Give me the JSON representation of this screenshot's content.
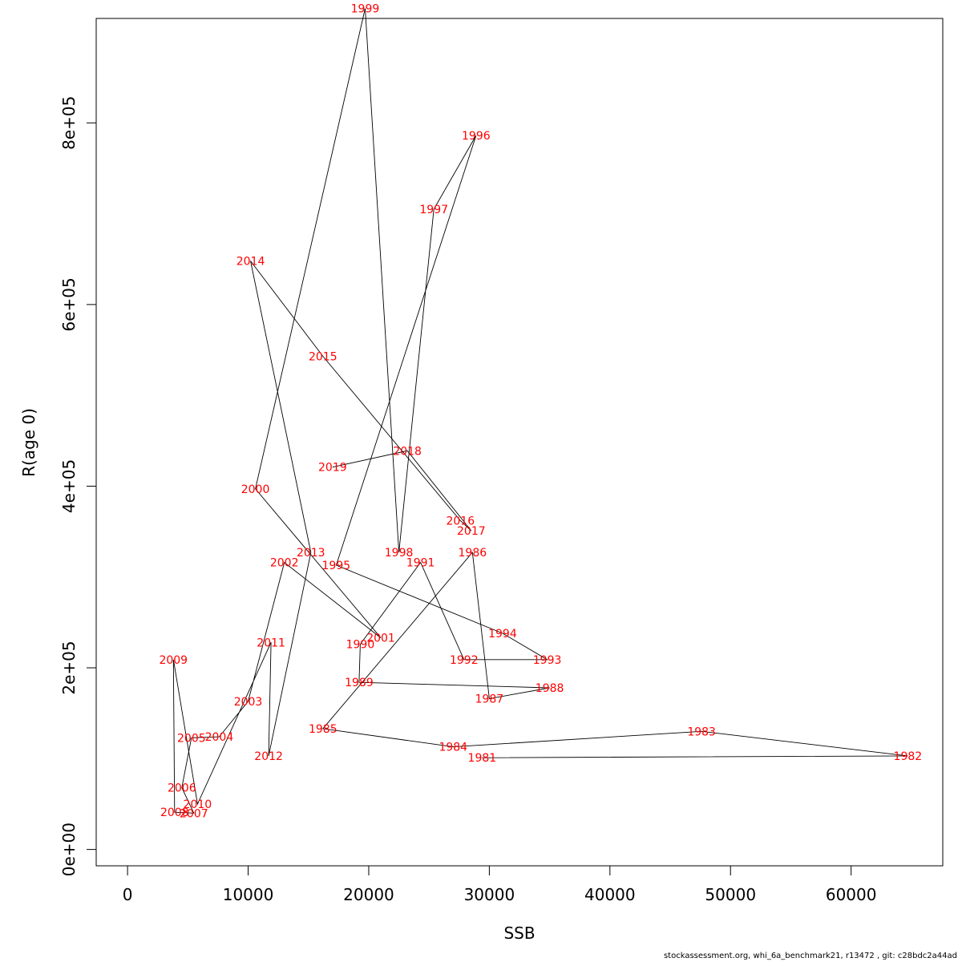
{
  "chart_data": {
    "type": "line",
    "xlabel": "SSB",
    "ylabel": "R(age 0)",
    "xlim": [
      -2600,
      67600
    ],
    "ylim": [
      -18000,
      915000
    ],
    "x_ticks": [
      0,
      10000,
      20000,
      30000,
      40000,
      50000,
      60000
    ],
    "x_tick_labels": [
      "0",
      "10000",
      "20000",
      "30000",
      "40000",
      "50000",
      "60000"
    ],
    "y_ticks": [
      0,
      200000,
      400000,
      600000,
      800000
    ],
    "y_tick_labels": [
      "0e+00",
      "2e+05",
      "4e+05",
      "6e+05",
      "8e+05"
    ],
    "line_color": "#000000",
    "label_color": "#ff0000",
    "points": [
      {
        "year": "1981",
        "x": 29400,
        "y": 101000
      },
      {
        "year": "1982",
        "x": 64700,
        "y": 103000
      },
      {
        "year": "1983",
        "x": 47600,
        "y": 130000
      },
      {
        "year": "1984",
        "x": 27000,
        "y": 113000
      },
      {
        "year": "1985",
        "x": 16200,
        "y": 133000
      },
      {
        "year": "1986",
        "x": 28600,
        "y": 327000
      },
      {
        "year": "1987",
        "x": 30000,
        "y": 166000
      },
      {
        "year": "1988",
        "x": 35000,
        "y": 178000
      },
      {
        "year": "1989",
        "x": 19200,
        "y": 184000
      },
      {
        "year": "1990",
        "x": 19300,
        "y": 226000
      },
      {
        "year": "1991",
        "x": 24300,
        "y": 316000
      },
      {
        "year": "1992",
        "x": 27900,
        "y": 209000
      },
      {
        "year": "1993",
        "x": 34800,
        "y": 209000
      },
      {
        "year": "1994",
        "x": 31100,
        "y": 238000
      },
      {
        "year": "1995",
        "x": 17300,
        "y": 313000
      },
      {
        "year": "1996",
        "x": 28900,
        "y": 786000
      },
      {
        "year": "1997",
        "x": 25400,
        "y": 705000
      },
      {
        "year": "1998",
        "x": 22500,
        "y": 327000
      },
      {
        "year": "1999",
        "x": 19700,
        "y": 926000
      },
      {
        "year": "2000",
        "x": 10600,
        "y": 397000
      },
      {
        "year": "2001",
        "x": 21000,
        "y": 233000
      },
      {
        "year": "2002",
        "x": 13000,
        "y": 316000
      },
      {
        "year": "2003",
        "x": 10000,
        "y": 163000
      },
      {
        "year": "2004",
        "x": 7600,
        "y": 124000
      },
      {
        "year": "2005",
        "x": 5300,
        "y": 123000
      },
      {
        "year": "2006",
        "x": 4500,
        "y": 68000
      },
      {
        "year": "2007",
        "x": 5500,
        "y": 40000
      },
      {
        "year": "2008",
        "x": 3900,
        "y": 41000
      },
      {
        "year": "2009",
        "x": 3800,
        "y": 209000
      },
      {
        "year": "2010",
        "x": 5800,
        "y": 50000
      },
      {
        "year": "2011",
        "x": 11900,
        "y": 228000
      },
      {
        "year": "2012",
        "x": 11700,
        "y": 103000
      },
      {
        "year": "2013",
        "x": 15200,
        "y": 327000
      },
      {
        "year": "2014",
        "x": 10200,
        "y": 648000
      },
      {
        "year": "2015",
        "x": 16200,
        "y": 543000
      },
      {
        "year": "2016",
        "x": 27600,
        "y": 362000
      },
      {
        "year": "2017",
        "x": 28500,
        "y": 351000
      },
      {
        "year": "2018",
        "x": 23200,
        "y": 439000
      },
      {
        "year": "2019",
        "x": 17000,
        "y": 421000
      }
    ]
  },
  "footer": {
    "text": "stockassessment.org, whi_6a_benchmark21, r13472 , git: c28bdc2a44ad"
  }
}
